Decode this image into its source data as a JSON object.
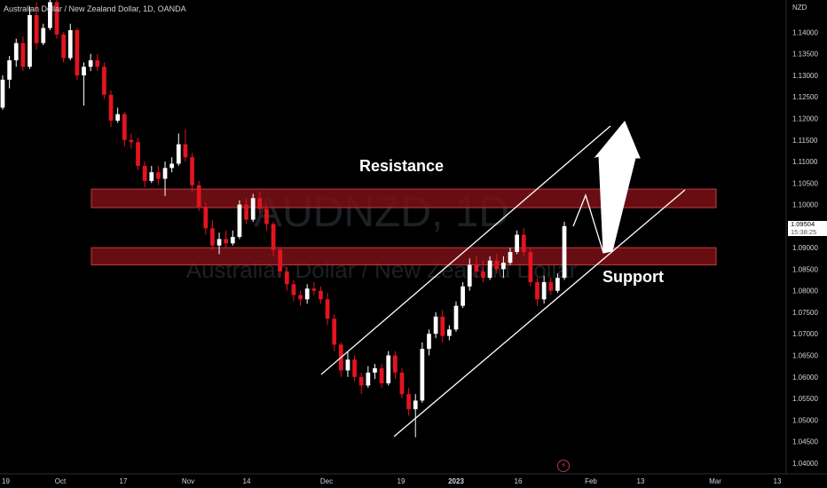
{
  "header": {
    "title": "Australian Dollar / New Zealand Dollar, 1D, OANDA"
  },
  "axis": {
    "currency": "NZD"
  },
  "price_tag": {
    "price": "1.09504",
    "countdown": "15:38:25"
  },
  "watermark": {
    "symbol": "AUDNZD, 1D",
    "name": "Australian Dollar / New Zealand Dollar"
  },
  "annotations": {
    "resistance": "Resistance",
    "support": "Support"
  },
  "chart_data": {
    "type": "candlestick",
    "ylim": [
      1.0375,
      1.1475
    ],
    "y_ticks": [
      1.14,
      1.135,
      1.13,
      1.125,
      1.12,
      1.115,
      1.11,
      1.105,
      1.1,
      1.095,
      1.09,
      1.085,
      1.08,
      1.075,
      1.07,
      1.065,
      1.06,
      1.055,
      1.05,
      1.045,
      1.04
    ],
    "x_ticks": [
      "19",
      "Oct",
      "17",
      "Nov",
      "14",
      "Dec",
      "19",
      "2023",
      "16",
      "Feb",
      "13",
      "Mar",
      "13"
    ],
    "zones": [
      {
        "name": "resistance",
        "from": 1.0993,
        "to": 1.1036,
        "color": "#7a1016"
      },
      {
        "name": "support",
        "from": 1.086,
        "to": 1.09,
        "color": "#7a1016"
      }
    ],
    "channel": {
      "upper": [
        [
          1.061,
          1.116
        ]
      ],
      "lower": [
        [
          1.047,
          1.104
        ]
      ]
    },
    "candles": [
      [
        1.1225,
        1.13,
        1.122,
        1.129
      ],
      [
        1.129,
        1.1345,
        1.127,
        1.1335
      ],
      [
        1.1335,
        1.1385,
        1.132,
        1.1375
      ],
      [
        1.1375,
        1.139,
        1.131,
        1.132
      ],
      [
        1.132,
        1.146,
        1.1315,
        1.144
      ],
      [
        1.144,
        1.147,
        1.136,
        1.1375
      ],
      [
        1.1375,
        1.142,
        1.137,
        1.141
      ],
      [
        1.141,
        1.148,
        1.1405,
        1.147
      ],
      [
        1.147,
        1.1475,
        1.1385,
        1.1395
      ],
      [
        1.1395,
        1.14,
        1.133,
        1.134
      ],
      [
        1.134,
        1.142,
        1.1335,
        1.1405
      ],
      [
        1.1405,
        1.141,
        1.129,
        1.13
      ],
      [
        1.13,
        1.133,
        1.123,
        1.132
      ],
      [
        1.132,
        1.135,
        1.131,
        1.1335
      ],
      [
        1.1335,
        1.135,
        1.131,
        1.132
      ],
      [
        1.132,
        1.133,
        1.1245,
        1.1255
      ],
      [
        1.1255,
        1.1265,
        1.118,
        1.1195
      ],
      [
        1.1195,
        1.1225,
        1.119,
        1.121
      ],
      [
        1.121,
        1.1215,
        1.1135,
        1.115
      ],
      [
        1.115,
        1.1165,
        1.113,
        1.1145
      ],
      [
        1.1145,
        1.1155,
        1.108,
        1.109
      ],
      [
        1.109,
        1.11,
        1.104,
        1.1055
      ],
      [
        1.1055,
        1.109,
        1.105,
        1.1075
      ],
      [
        1.1075,
        1.109,
        1.1045,
        1.106
      ],
      [
        1.106,
        1.11,
        1.102,
        1.1085
      ],
      [
        1.1085,
        1.111,
        1.1075,
        1.1095
      ],
      [
        1.1095,
        1.1165,
        1.109,
        1.114
      ],
      [
        1.114,
        1.1175,
        1.11,
        1.111
      ],
      [
        1.111,
        1.112,
        1.103,
        1.1045
      ],
      [
        1.1045,
        1.1055,
        1.0985,
        1.0995
      ],
      [
        1.0995,
        1.1005,
        1.093,
        1.0945
      ],
      [
        1.0945,
        1.0965,
        1.0895,
        1.0905
      ],
      [
        1.0905,
        1.0935,
        1.0885,
        1.092
      ],
      [
        1.092,
        1.094,
        1.09,
        1.091
      ],
      [
        1.091,
        1.094,
        1.0905,
        1.0925
      ],
      [
        1.0925,
        1.101,
        1.092,
        1.1
      ],
      [
        1.1,
        1.1015,
        1.0955,
        1.0965
      ],
      [
        1.0965,
        1.1025,
        1.096,
        1.1015
      ],
      [
        1.1015,
        1.103,
        1.098,
        1.099
      ],
      [
        1.099,
        1.1,
        1.094,
        1.0955
      ],
      [
        1.0955,
        1.096,
        1.088,
        1.0895
      ],
      [
        1.0895,
        1.09,
        1.083,
        1.0845
      ],
      [
        1.0845,
        1.0855,
        1.08,
        1.0815
      ],
      [
        1.0815,
        1.0825,
        1.0775,
        1.079
      ],
      [
        1.079,
        1.08,
        1.0765,
        1.078
      ],
      [
        1.078,
        1.0815,
        1.077,
        1.0805
      ],
      [
        1.0805,
        1.082,
        1.079,
        1.08
      ],
      [
        1.08,
        1.081,
        1.077,
        1.078
      ],
      [
        1.078,
        1.0795,
        1.072,
        1.0735
      ],
      [
        1.0735,
        1.0745,
        1.066,
        1.0675
      ],
      [
        1.0675,
        1.068,
        1.06,
        1.0615
      ],
      [
        1.0615,
        1.066,
        1.06,
        1.064
      ],
      [
        1.064,
        1.065,
        1.059,
        1.06
      ],
      [
        1.06,
        1.061,
        1.056,
        1.058
      ],
      [
        1.058,
        1.0625,
        1.0575,
        1.061
      ],
      [
        1.061,
        1.063,
        1.0595,
        1.062
      ],
      [
        1.062,
        1.063,
        1.0575,
        1.0585
      ],
      [
        1.0585,
        1.066,
        1.058,
        1.065
      ],
      [
        1.065,
        1.066,
        1.0595,
        1.061
      ],
      [
        1.061,
        1.062,
        1.055,
        1.056
      ],
      [
        1.056,
        1.0575,
        1.051,
        1.0525
      ],
      [
        1.0525,
        1.056,
        1.046,
        1.0545
      ],
      [
        1.0545,
        1.068,
        1.054,
        1.0665
      ],
      [
        1.0665,
        1.071,
        1.065,
        1.07
      ],
      [
        1.07,
        1.075,
        1.069,
        1.074
      ],
      [
        1.074,
        1.0755,
        1.068,
        1.0695
      ],
      [
        1.0695,
        1.072,
        1.0685,
        1.071
      ],
      [
        1.071,
        1.0775,
        1.0705,
        1.0765
      ],
      [
        1.0765,
        1.082,
        1.076,
        1.081
      ],
      [
        1.081,
        1.0875,
        1.08,
        1.086
      ],
      [
        1.086,
        1.088,
        1.083,
        1.0845
      ],
      [
        1.0845,
        1.087,
        1.082,
        1.083
      ],
      [
        1.083,
        1.088,
        1.0825,
        1.087
      ],
      [
        1.087,
        1.0885,
        1.084,
        1.085
      ],
      [
        1.085,
        1.088,
        1.083,
        1.0865
      ],
      [
        1.0865,
        1.09,
        1.086,
        1.089
      ],
      [
        1.089,
        1.094,
        1.0885,
        1.093
      ],
      [
        1.093,
        1.0945,
        1.088,
        1.089
      ],
      [
        1.089,
        1.09,
        1.081,
        1.082
      ],
      [
        1.082,
        1.083,
        1.0765,
        1.078
      ],
      [
        1.078,
        1.0835,
        1.077,
        1.082
      ],
      [
        1.082,
        1.083,
        1.079,
        1.08
      ],
      [
        1.08,
        1.084,
        1.0795,
        1.083
      ],
      [
        1.083,
        1.096,
        1.0825,
        1.095
      ]
    ]
  }
}
